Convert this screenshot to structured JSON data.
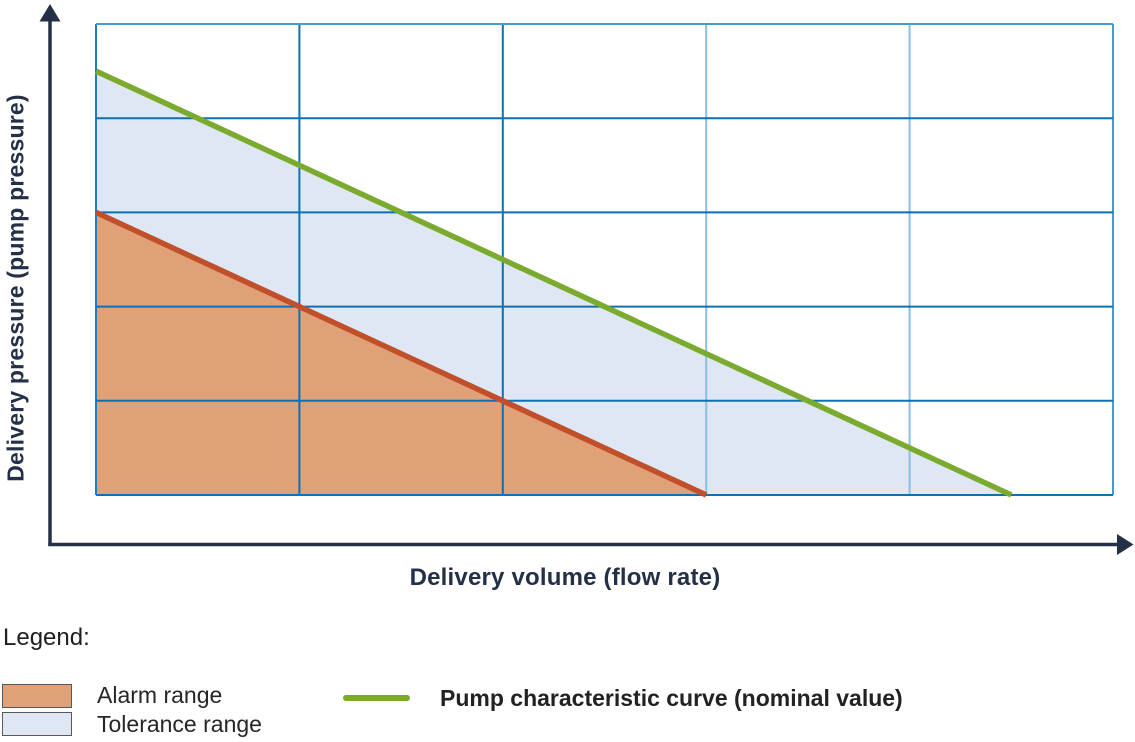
{
  "chart": {
    "x_axis_label": "Delivery volume (flow rate)",
    "y_axis_label": "Delivery pressure (pump pressure)"
  },
  "legend": {
    "title": "Legend:",
    "items": [
      {
        "id": "alarm-range",
        "label": "Alarm range",
        "swatch_type": "filled-rect",
        "swatch_fill": "#e0a178",
        "swatch_border": "#58585a"
      },
      {
        "id": "tolerance-range",
        "label": "Tolerance range",
        "swatch_type": "filled-rect",
        "swatch_fill": "#dfe7f5",
        "swatch_border": "#58585a"
      },
      {
        "id": "pump-curve",
        "label": "Pump characteristic curve (nominal value)",
        "swatch_type": "line",
        "swatch_fill": "#7aaa2e"
      }
    ]
  },
  "colors": {
    "axis": "#243047",
    "grid_major": "#0c70b2",
    "grid_light": "#8abee2",
    "grid_edge": "#459bd1",
    "grid_left_edge": "#1b7ec0",
    "nominal_curve": "#7aaa2e",
    "alarm_line": "#c1502a",
    "alarm_fill": "#e0a178",
    "tolerance_fill": "#dfe7f5",
    "axis_label_text": "#243047",
    "legend_text": "#262626"
  },
  "chart_data": {
    "type": "area",
    "title": "",
    "xlabel": "Delivery volume (flow rate)",
    "ylabel": "Delivery pressure (pump pressure)",
    "xlim": [
      0,
      5
    ],
    "ylim": [
      0,
      5
    ],
    "grid": true,
    "tick_labels": "none (qualitative, unlabeled axes)",
    "x_gridlines": [
      0,
      1,
      2,
      3,
      4,
      5
    ],
    "y_gridlines": [
      0,
      1,
      2,
      3,
      4,
      5
    ],
    "legend_position": "below chart, outside plot area",
    "series": [
      {
        "name": "Pump characteristic curve (nominal value)",
        "type": "line",
        "color": "#7aaa2e",
        "points": [
          [
            0,
            4.5
          ],
          [
            4.5,
            0
          ]
        ]
      },
      {
        "name": "Tolerance range",
        "type": "area",
        "fill": "#dfe7f5",
        "description": "region between nominal curve and alarm boundary, down to x-axis",
        "polygon": [
          [
            0,
            4.5
          ],
          [
            4.5,
            0
          ],
          [
            0,
            0
          ]
        ]
      },
      {
        "name": "Alarm range",
        "type": "area",
        "fill": "#e0a178",
        "line_color": "#c1502a",
        "line_points": [
          [
            0,
            3
          ],
          [
            3,
            0
          ]
        ],
        "polygon": [
          [
            0,
            3
          ],
          [
            3,
            0
          ],
          [
            0,
            0
          ]
        ]
      }
    ]
  }
}
